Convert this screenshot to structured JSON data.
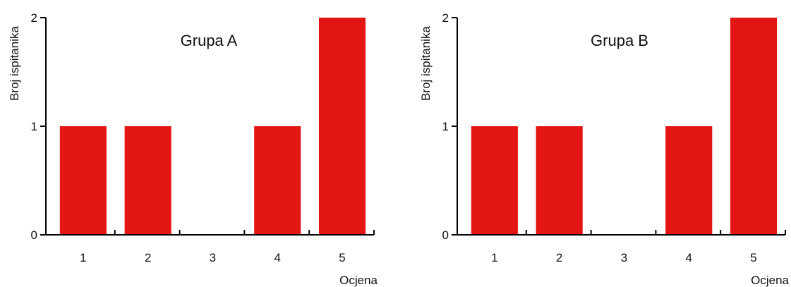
{
  "colors": {
    "bar": "#e31614",
    "axis": "#000000",
    "text": "#111111"
  },
  "chart_data": [
    {
      "type": "bar",
      "title": "Grupa A",
      "categories": [
        "1",
        "2",
        "3",
        "4",
        "5"
      ],
      "values": [
        1,
        1,
        0,
        1,
        2
      ],
      "xlabel": "Ocjena",
      "ylabel": "Broj ispitanika",
      "ylim": [
        0,
        2
      ],
      "yticks": [
        "0",
        "1",
        "2"
      ],
      "grid": false,
      "legend": "none"
    },
    {
      "type": "bar",
      "title": "Grupa B",
      "categories": [
        "1",
        "2",
        "3",
        "4",
        "5"
      ],
      "values": [
        1,
        1,
        0,
        1,
        2
      ],
      "xlabel": "Ocjena",
      "ylabel": "Broj ispitanika",
      "ylim": [
        0,
        2
      ],
      "yticks": [
        "0",
        "1",
        "2"
      ],
      "grid": false,
      "legend": "none"
    }
  ]
}
